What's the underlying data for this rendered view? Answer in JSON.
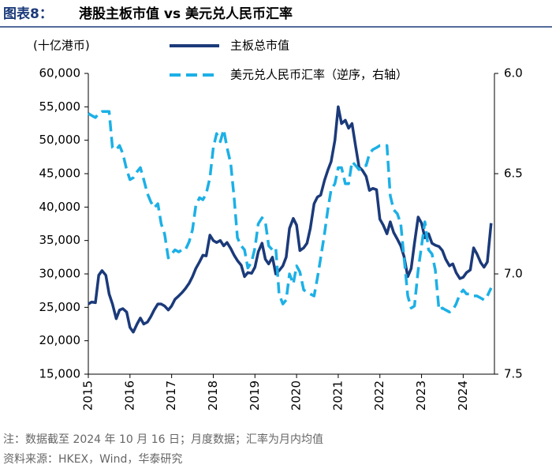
{
  "chart_data": {
    "type": "line",
    "figure_label": "图表8：",
    "title": "港股主板市值 vs 美元兑人民币汇率",
    "y_label": "(十亿港币)",
    "note": "注：数据截至 2024 年 10 月 16 日；月度数据；汇率为月内均值",
    "source": "资料来源：HKEX，Wind，华泰研究",
    "legend": "top",
    "grid": false,
    "x": [
      2015,
      2015.08,
      2015.17,
      2015.25,
      2015.33,
      2015.42,
      2015.5,
      2015.58,
      2015.67,
      2015.75,
      2015.83,
      2015.92,
      2016,
      2016.08,
      2016.17,
      2016.25,
      2016.33,
      2016.42,
      2016.5,
      2016.58,
      2016.67,
      2016.75,
      2016.83,
      2016.92,
      2017,
      2017.08,
      2017.17,
      2017.25,
      2017.33,
      2017.42,
      2017.5,
      2017.58,
      2017.67,
      2017.75,
      2017.83,
      2017.92,
      2018,
      2018.08,
      2018.17,
      2018.25,
      2018.33,
      2018.42,
      2018.5,
      2018.58,
      2018.67,
      2018.75,
      2018.83,
      2018.92,
      2019,
      2019.08,
      2019.17,
      2019.25,
      2019.33,
      2019.42,
      2019.5,
      2019.58,
      2019.67,
      2019.75,
      2019.83,
      2019.92,
      2020,
      2020.08,
      2020.17,
      2020.25,
      2020.33,
      2020.42,
      2020.5,
      2020.58,
      2020.67,
      2020.75,
      2020.83,
      2020.92,
      2021,
      2021.08,
      2021.17,
      2021.25,
      2021.33,
      2021.42,
      2021.5,
      2021.58,
      2021.67,
      2021.75,
      2021.83,
      2021.92,
      2022,
      2022.08,
      2022.17,
      2022.25,
      2022.33,
      2022.42,
      2022.5,
      2022.58,
      2022.67,
      2022.75,
      2022.83,
      2022.92,
      2023,
      2023.08,
      2023.17,
      2023.25,
      2023.33,
      2023.42,
      2023.5,
      2023.58,
      2023.67,
      2023.75,
      2023.83,
      2023.92,
      2024,
      2024.08,
      2024.17,
      2024.25,
      2024.33,
      2024.42,
      2024.5,
      2024.58,
      2024.67
    ],
    "xlim": [
      2015,
      2024.75
    ],
    "xticks": [
      2015,
      2016,
      2017,
      2018,
      2019,
      2020,
      2021,
      2022,
      2023,
      2024
    ],
    "ylim": [
      15000,
      60000
    ],
    "yticks": [
      {
        "value": 15000,
        "label": "15,000"
      },
      {
        "value": 20000,
        "label": "20,000"
      },
      {
        "value": 25000,
        "label": "25,000"
      },
      {
        "value": 30000,
        "label": "30,000"
      },
      {
        "value": 35000,
        "label": "35,000"
      },
      {
        "value": 40000,
        "label": "40,000"
      },
      {
        "value": 45000,
        "label": "45,000"
      },
      {
        "value": 50000,
        "label": "50,000"
      },
      {
        "value": 55000,
        "label": "55,000"
      },
      {
        "value": 60000,
        "label": "60,000"
      }
    ],
    "y2lim": [
      7.5,
      6.0
    ],
    "y2ticks": [
      {
        "value": 6,
        "label": "6.0"
      },
      6.5,
      {
        "value": 7,
        "label": "7.0"
      },
      7.5
    ],
    "series": [
      {
        "name": "主板总市值",
        "color": "#1b3a7a",
        "line_style": "solid",
        "values": [
          25500,
          25800,
          25700,
          29800,
          30500,
          29800,
          27000,
          25500,
          23300,
          24600,
          24800,
          24300,
          22000,
          21300,
          22500,
          23400,
          22500,
          22800,
          23600,
          24600,
          25500,
          25500,
          25200,
          24600,
          25200,
          26200,
          26700,
          27200,
          27800,
          28600,
          29600,
          30800,
          31800,
          32800,
          32700,
          35800,
          35000,
          34700,
          35000,
          34200,
          34700,
          33800,
          32800,
          32000,
          31300,
          29600,
          30200,
          30100,
          31000,
          33300,
          34600,
          32200,
          31500,
          32500,
          30000,
          30500,
          31200,
          32500,
          36800,
          38300,
          37300,
          33500,
          33900,
          34600,
          36800,
          40500,
          41500,
          41800,
          44000,
          45500,
          46800,
          50000,
          55000,
          52500,
          53000,
          51800,
          52500,
          49000,
          46000,
          45500,
          44600,
          42500,
          42800,
          42600,
          38200,
          37300,
          36000,
          37800,
          36200,
          35200,
          34200,
          32600,
          29600,
          30800,
          34600,
          38500,
          37600,
          35400,
          36000,
          34600,
          34300,
          34100,
          33500,
          32200,
          31200,
          31500,
          30200,
          29300,
          29500,
          30200,
          30600,
          33900,
          33000,
          31700,
          31000,
          31800,
          37600
        ]
      },
      {
        "name": "美元兑人民币汇率（逆序，右轴）",
        "color": "#1cb0e6",
        "line_style": "dashed",
        "axis": "y2",
        "values": [
          6.2,
          6.21,
          6.22,
          6.2,
          6.19,
          6.19,
          6.19,
          6.37,
          6.38,
          6.36,
          6.4,
          6.48,
          6.53,
          6.52,
          6.49,
          6.47,
          6.53,
          6.6,
          6.64,
          6.67,
          6.65,
          6.75,
          6.8,
          6.92,
          6.9,
          6.88,
          6.89,
          6.88,
          6.88,
          6.84,
          6.78,
          6.66,
          6.62,
          6.63,
          6.6,
          6.52,
          6.37,
          6.3,
          6.34,
          6.28,
          6.37,
          6.45,
          6.62,
          6.82,
          6.86,
          6.88,
          6.97,
          6.94,
          6.87,
          6.75,
          6.72,
          6.74,
          6.86,
          6.88,
          6.87,
          7.1,
          7.15,
          7.13,
          7.0,
          7.05,
          6.96,
          6.99,
          7.08,
          7.09,
          7.1,
          7.11,
          7.02,
          6.92,
          6.8,
          6.68,
          6.58,
          6.55,
          6.47,
          6.47,
          6.55,
          6.55,
          6.44,
          6.46,
          6.48,
          6.46,
          6.46,
          6.4,
          6.38,
          6.37,
          6.36,
          6.36,
          6.36,
          6.61,
          6.68,
          6.7,
          6.75,
          6.92,
          7.11,
          7.17,
          7.16,
          6.98,
          6.86,
          6.74,
          6.88,
          6.9,
          6.98,
          7.18,
          7.17,
          7.18,
          7.19,
          7.18,
          7.15,
          7.1,
          7.08,
          7.1,
          7.1,
          7.11,
          7.11,
          7.12,
          7.13,
          7.11,
          7.07
        ]
      }
    ]
  }
}
